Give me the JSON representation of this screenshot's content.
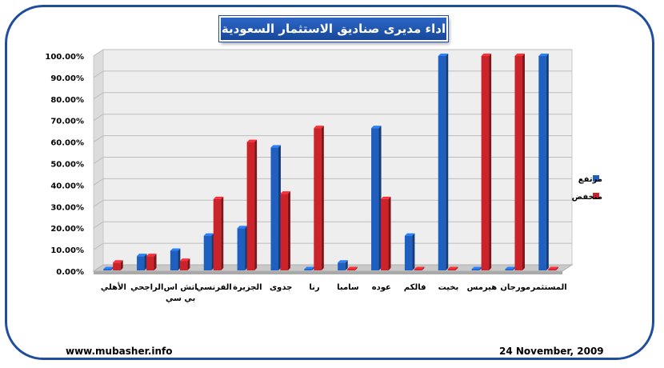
{
  "chart_data": {
    "type": "bar",
    "title": "اداء مديرى صناديق الاستثمار السعودية",
    "categories": [
      "الأهلي",
      "الراجحي",
      "اتش اس بي سي",
      "الفرنسي",
      "الجزيرة",
      "جدوى",
      "رنا",
      "سامبا",
      "عوده",
      "فالكم",
      "بخيت",
      "هيرمس",
      "مورجان",
      "المستثمر"
    ],
    "series": [
      {
        "name": "مرتفع",
        "color": "#1f5fbf",
        "values": [
          0,
          7,
          9.5,
          16.5,
          20,
          57.5,
          0,
          4,
          66.5,
          16.5,
          100,
          0,
          0,
          100
        ]
      },
      {
        "name": "منخفض",
        "color": "#cc2229",
        "values": [
          4,
          7,
          4.8,
          33.5,
          60,
          36,
          66.5,
          0,
          33.5,
          0,
          0,
          100,
          100,
          0
        ]
      }
    ],
    "y_ticks": [
      "0.00%",
      "10.00%",
      "20.00%",
      "30.00%",
      "40.00%",
      "50.00%",
      "60.00%",
      "70.00%",
      "80.00%",
      "90.00%",
      "100.00%"
    ],
    "ylim": [
      0,
      100
    ],
    "grid": true,
    "legend_position": "right"
  },
  "footer": {
    "website": "www.mubasher.info",
    "date": "24 November, 2009"
  }
}
